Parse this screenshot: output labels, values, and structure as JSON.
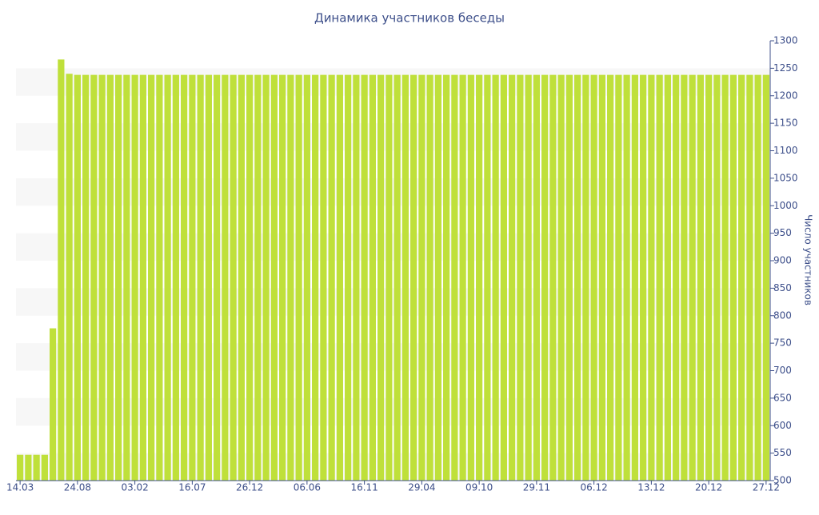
{
  "chart_data": {
    "type": "bar",
    "title": "Динамика участников беседы",
    "y_axis_label": "Число участников",
    "color": "#bfe03a",
    "categories": [
      "14.03",
      null,
      null,
      null,
      null,
      null,
      null,
      "24.08",
      null,
      null,
      null,
      null,
      null,
      null,
      "03.02",
      null,
      null,
      null,
      null,
      null,
      null,
      "16.07",
      null,
      null,
      null,
      null,
      null,
      null,
      "26.12",
      null,
      null,
      null,
      null,
      null,
      null,
      "06.06",
      null,
      null,
      null,
      null,
      null,
      null,
      "16.11",
      null,
      null,
      null,
      null,
      null,
      null,
      "29.04",
      null,
      null,
      null,
      null,
      null,
      null,
      "09.10",
      null,
      null,
      null,
      null,
      null,
      null,
      "29.11",
      null,
      null,
      null,
      null,
      null,
      null,
      "06.12",
      null,
      null,
      null,
      null,
      null,
      null,
      "13.12",
      null,
      null,
      null,
      null,
      null,
      null,
      "20.12",
      null,
      null,
      null,
      null,
      null,
      null,
      "27.12"
    ],
    "values": [
      547,
      547,
      547,
      547,
      777,
      1266,
      1240,
      1238,
      1238,
      1238,
      1238,
      1238,
      1238,
      1238,
      1238,
      1238,
      1238,
      1238,
      1238,
      1238,
      1238,
      1238,
      1238,
      1238,
      1238,
      1238,
      1238,
      1238,
      1238,
      1238,
      1238,
      1238,
      1238,
      1238,
      1238,
      1238,
      1238,
      1238,
      1238,
      1238,
      1238,
      1238,
      1238,
      1238,
      1238,
      1238,
      1238,
      1238,
      1238,
      1238,
      1238,
      1238,
      1238,
      1238,
      1238,
      1238,
      1238,
      1238,
      1238,
      1238,
      1238,
      1238,
      1238,
      1238,
      1238,
      1238,
      1238,
      1238,
      1238,
      1238,
      1238,
      1238,
      1238,
      1238,
      1238,
      1238,
      1238,
      1238,
      1238,
      1238,
      1238,
      1238,
      1238,
      1238,
      1238,
      1238,
      1238,
      1238,
      1238,
      1238,
      1238,
      1238
    ],
    "ylim": [
      500,
      1300
    ],
    "yticks": [
      500,
      550,
      600,
      650,
      700,
      750,
      800,
      850,
      900,
      950,
      1000,
      1050,
      1100,
      1150,
      1200,
      1250,
      1300
    ],
    "y_axis_side": "right",
    "grid": "bands"
  }
}
